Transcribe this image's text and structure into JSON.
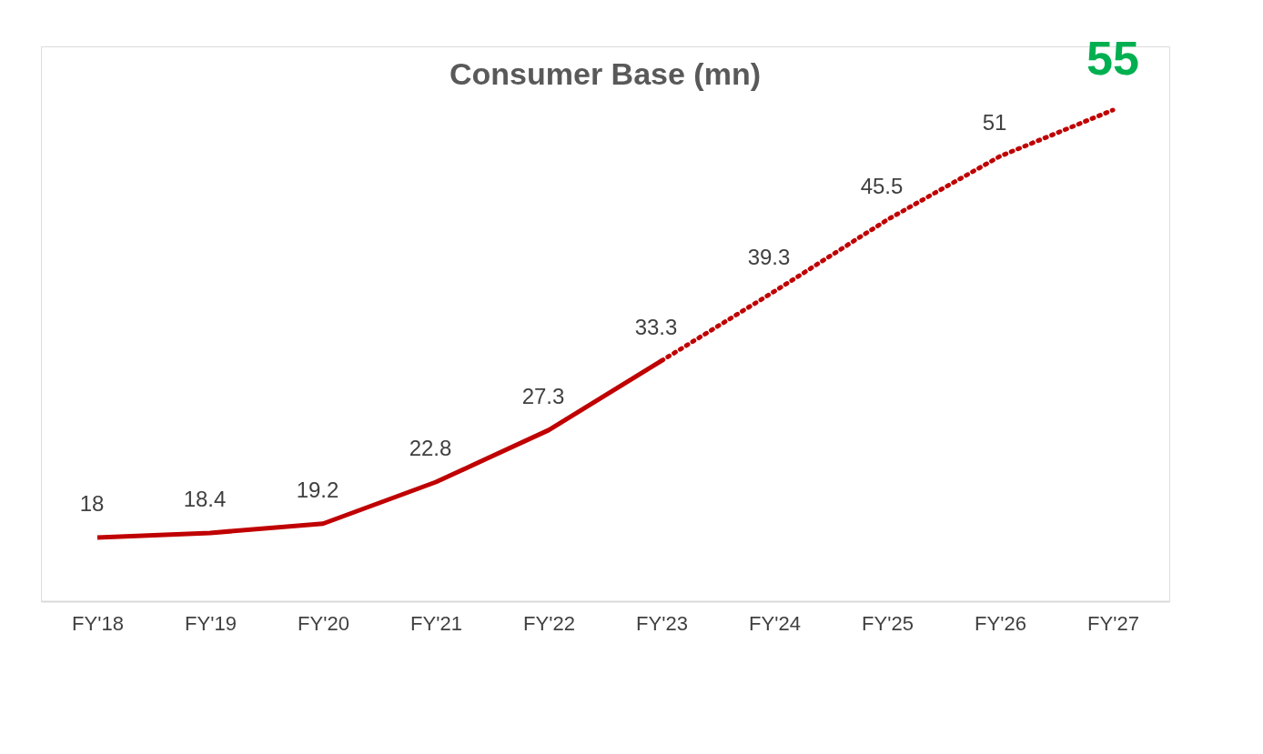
{
  "chart_data": {
    "type": "line",
    "title": "Consumer Base (mn)",
    "categories": [
      "FY'18",
      "FY'19",
      "FY'20",
      "FY'21",
      "FY'22",
      "FY'23",
      "FY'24",
      "FY'25",
      "FY'26",
      "FY'27"
    ],
    "series": [
      {
        "color": "#c00000",
        "line_style": "solid",
        "values": [
          18,
          18.4,
          19.2,
          22.8,
          27.3,
          33.3,
          null,
          null,
          null,
          null
        ],
        "value_labels": [
          "18",
          "18.4",
          "19.2",
          "22.8",
          "27.3",
          "33.3",
          null,
          null,
          null,
          null
        ]
      },
      {
        "color": "#c00000",
        "line_style": "dotted",
        "values": [
          null,
          null,
          null,
          null,
          null,
          33.3,
          39.3,
          45.5,
          51,
          55
        ],
        "value_labels": [
          null,
          null,
          null,
          null,
          null,
          null,
          "39.3",
          "45.5",
          "51",
          null
        ]
      }
    ],
    "annotations": [
      {
        "text": "55",
        "x": "FY'27",
        "y": 55
      }
    ],
    "marker": "none"
  }
}
